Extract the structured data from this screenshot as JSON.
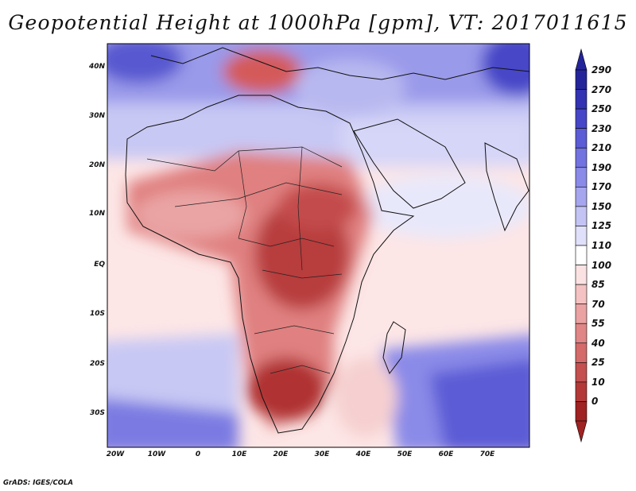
{
  "title": "Geopotential Height at 1000hPa [gpm], VT: 2017011615",
  "credit": "GrADS: IGES/COLA",
  "map": {
    "lat_labels": [
      "40N",
      "30N",
      "20N",
      "10N",
      "EQ",
      "10S",
      "20S",
      "30S"
    ],
    "lon_labels": [
      "20W",
      "10W",
      "0",
      "10E",
      "20E",
      "30E",
      "40E",
      "50E",
      "60E",
      "70E"
    ]
  },
  "colorbar": {
    "labels": [
      "290",
      "270",
      "250",
      "230",
      "210",
      "190",
      "170",
      "150",
      "125",
      "110",
      "100",
      "85",
      "70",
      "55",
      "40",
      "25",
      "10",
      "0"
    ],
    "colors": [
      "#24249a",
      "#3232b2",
      "#4646c8",
      "#5c5cd6",
      "#7272e0",
      "#8a8ae8",
      "#a6a6ee",
      "#c4c4f4",
      "#e0e0fa",
      "#ffffff",
      "#fbe2e2",
      "#f4c2c2",
      "#eaa2a2",
      "#e08686",
      "#d46a6a",
      "#c45050",
      "#b43838",
      "#a02222"
    ]
  }
}
